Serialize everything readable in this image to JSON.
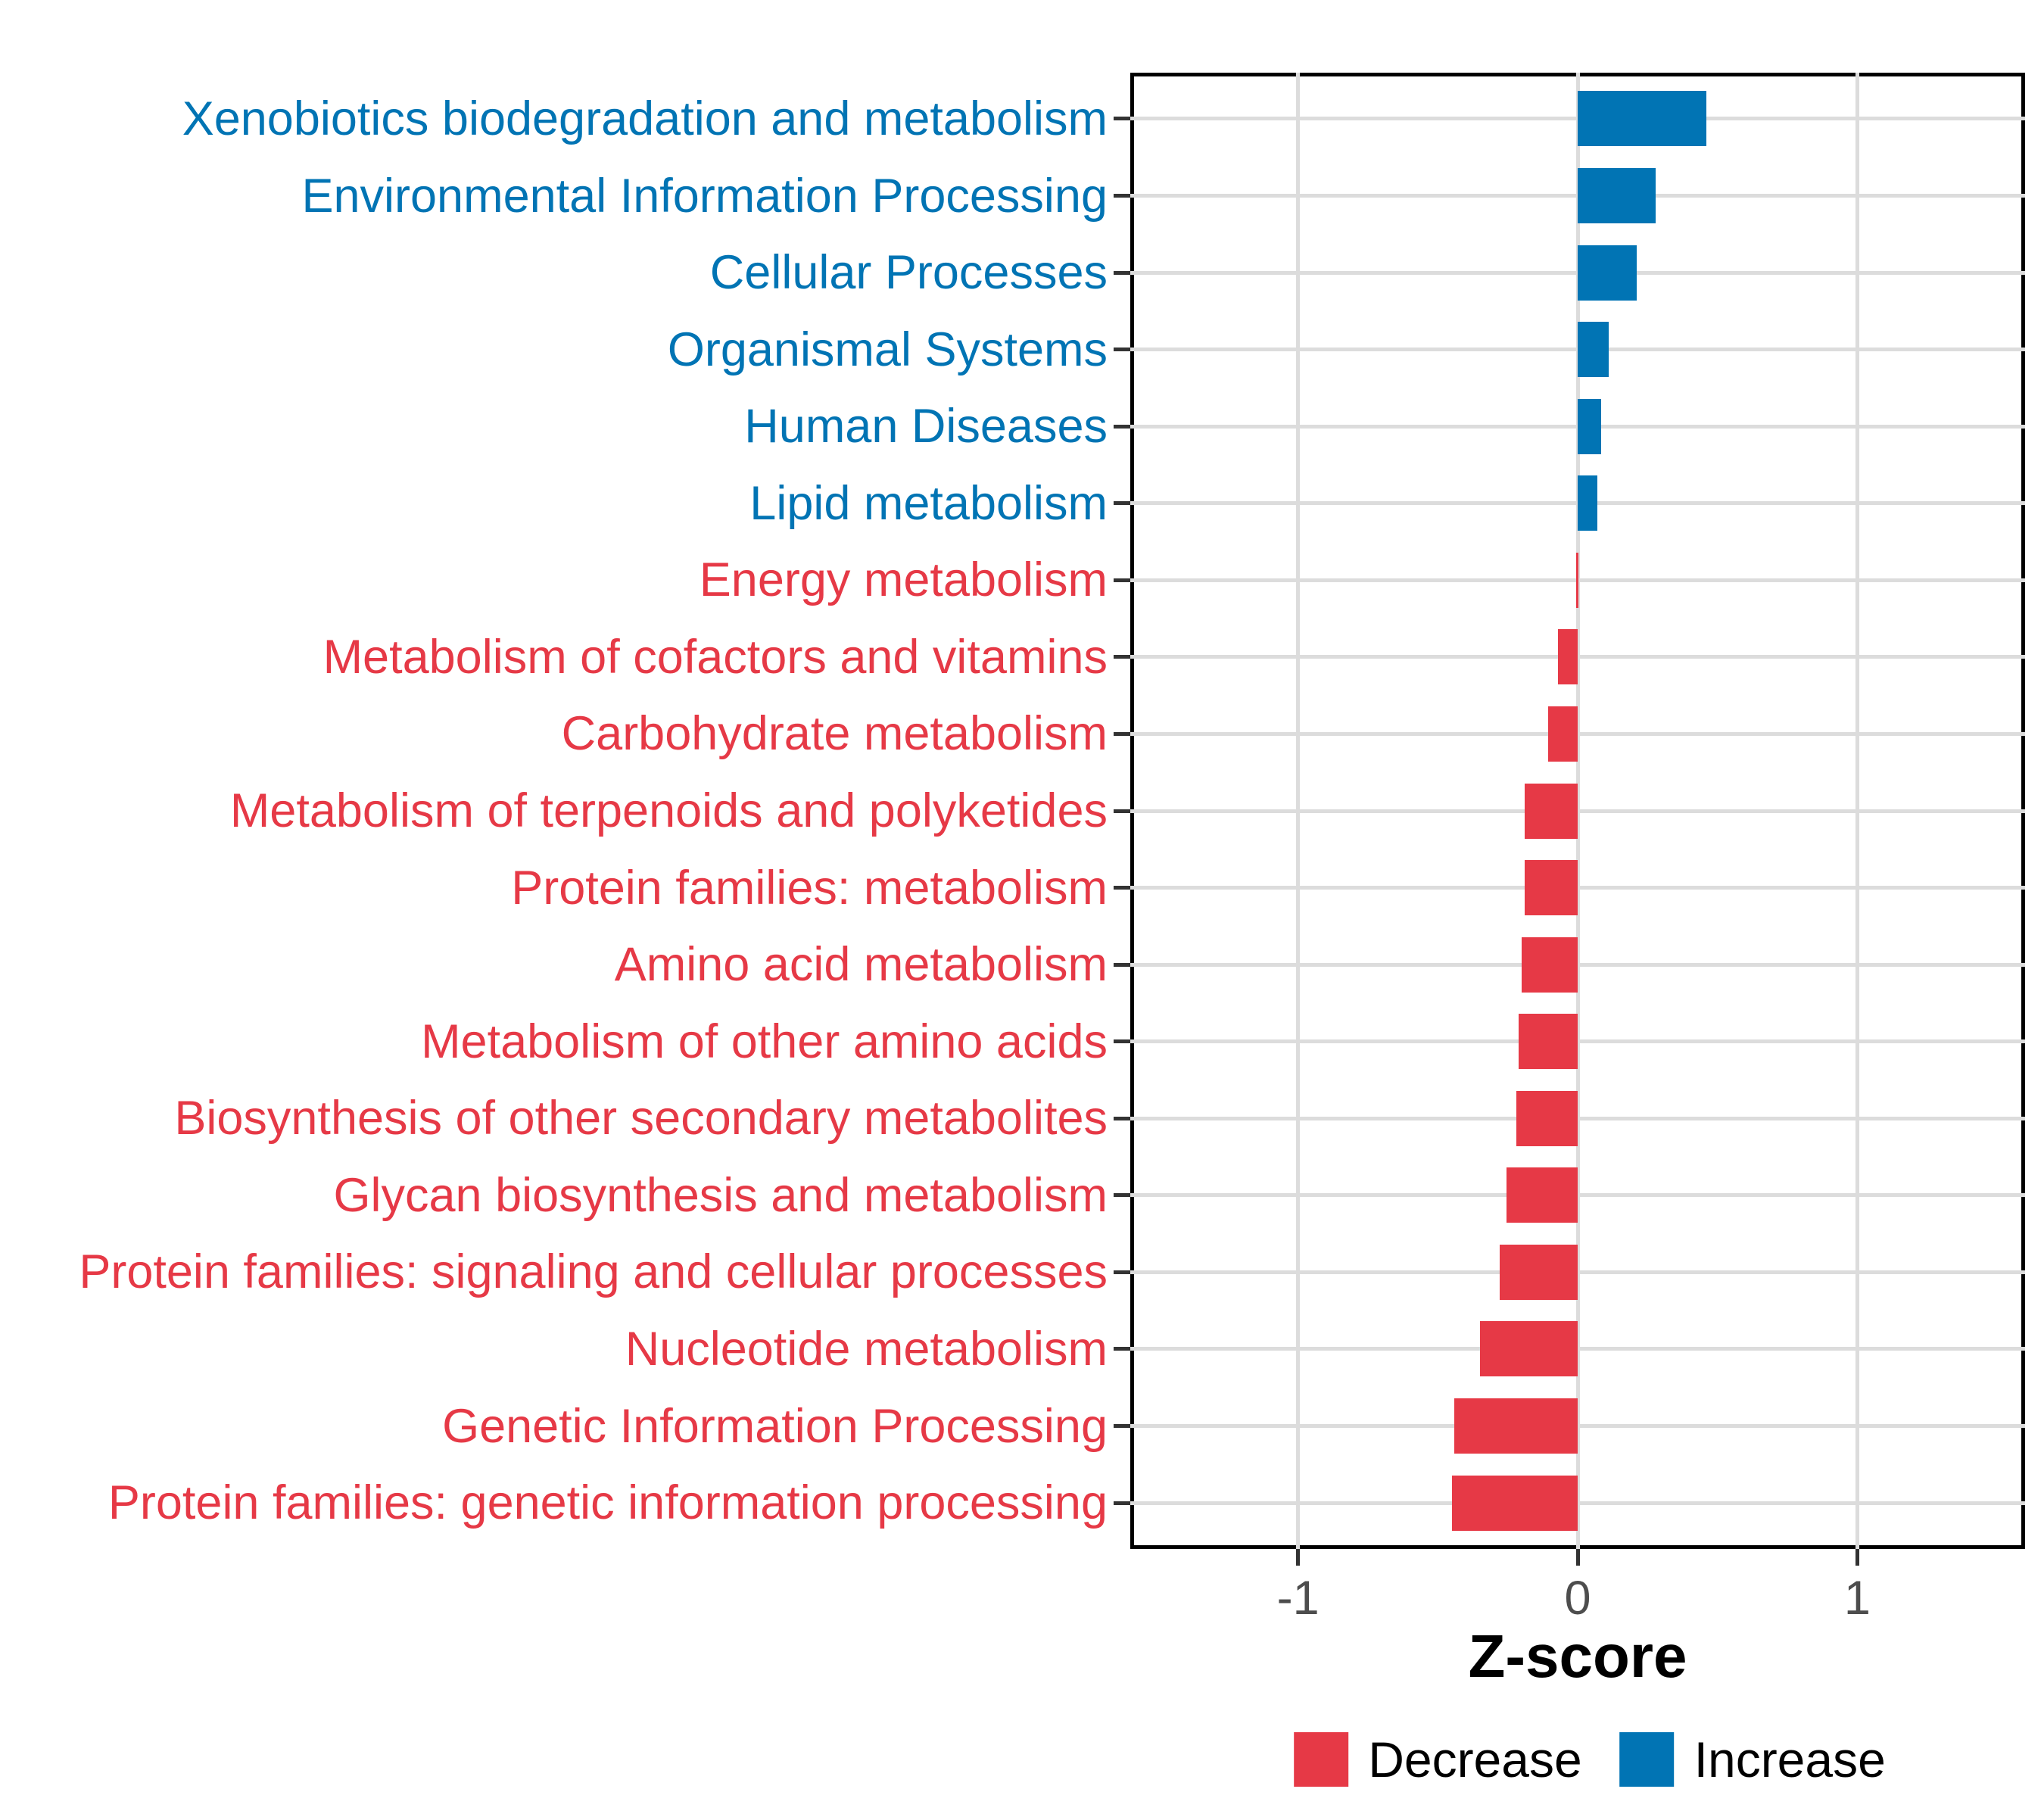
{
  "chart_data": {
    "type": "bar",
    "orientation": "horizontal",
    "title": "",
    "xlabel": "Z-score",
    "xlim": [
      -1.6,
      1.6
    ],
    "x_ticks": [
      -1,
      0,
      1
    ],
    "x_tick_labels": [
      "-1",
      "0",
      "1"
    ],
    "grid": true,
    "legend_position": "bottom",
    "categories": [
      "Xenobiotics biodegradation and metabolism",
      "Environmental Information Processing",
      "Cellular Processes",
      "Organismal Systems",
      "Human Diseases",
      "Lipid metabolism",
      "Energy metabolism",
      "Metabolism of cofactors and vitamins",
      "Carbohydrate metabolism",
      "Metabolism of terpenoids and polyketides",
      "Protein families: metabolism",
      "Amino acid metabolism",
      "Metabolism of other amino acids",
      "Biosynthesis of other secondary metabolites",
      "Glycan biosynthesis and metabolism",
      "Protein families: signaling and cellular processes",
      "Nucleotide metabolism",
      "Genetic Information Processing",
      "Protein families: genetic information processing"
    ],
    "values": [
      0.46,
      0.28,
      0.21,
      0.11,
      0.085,
      0.07,
      -0.005,
      -0.07,
      -0.105,
      -0.19,
      -0.19,
      -0.2,
      -0.21,
      -0.22,
      -0.255,
      -0.28,
      -0.35,
      -0.44,
      -0.45
    ],
    "directions": [
      "Increase",
      "Increase",
      "Increase",
      "Increase",
      "Increase",
      "Increase",
      "Decrease",
      "Decrease",
      "Decrease",
      "Decrease",
      "Decrease",
      "Decrease",
      "Decrease",
      "Decrease",
      "Decrease",
      "Decrease",
      "Decrease",
      "Decrease",
      "Decrease"
    ],
    "colors": {
      "Decrease": "#E63946",
      "Increase": "#0174B4"
    }
  },
  "legend": {
    "decrease_label": "Decrease",
    "increase_label": "Increase"
  },
  "style_colors": {
    "gridline": "#DCDCDC",
    "axis_text": "#4D4D4D",
    "panel_border": "#000000",
    "background": "#FFFFFF"
  }
}
